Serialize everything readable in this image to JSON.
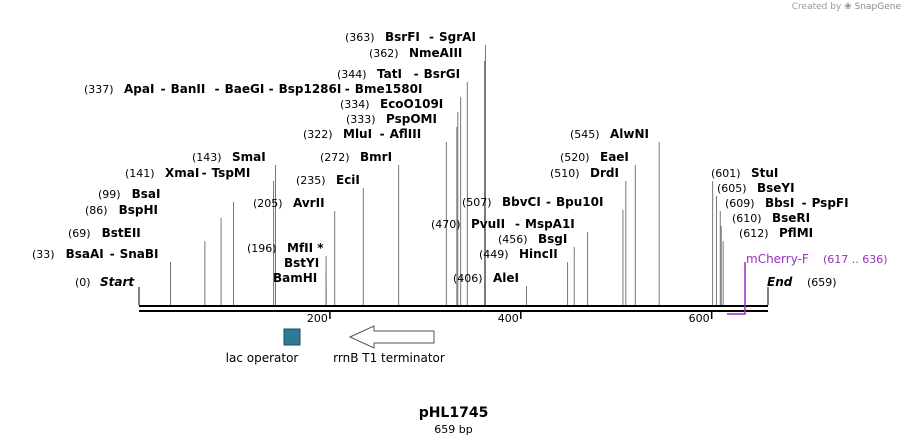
{
  "credit": {
    "prefix": "Created by",
    "brand": "SnapGene"
  },
  "map": {
    "name": "pHL1745",
    "length_label": "659 bp",
    "length": 659,
    "start_label": "Start",
    "end_label": "End",
    "start_pos": "(0)",
    "end_pos": "(659)",
    "ticks": [
      200,
      400,
      600
    ]
  },
  "sites": [
    {
      "pos": 33,
      "pos_label": "(33)",
      "names": [
        "BsaAI",
        "SnaBI"
      ]
    },
    {
      "pos": 69,
      "pos_label": "(69)",
      "names": [
        "BstEII"
      ]
    },
    {
      "pos": 86,
      "pos_label": "(86)",
      "names": [
        "BspHI"
      ]
    },
    {
      "pos": 99,
      "pos_label": "(99)",
      "names": [
        "BsaI"
      ]
    },
    {
      "pos": 141,
      "pos_label": "(141)",
      "names": [
        "XmaI",
        "TspMI"
      ]
    },
    {
      "pos": 143,
      "pos_label": "(143)",
      "names": [
        "SmaI"
      ]
    },
    {
      "pos": 196,
      "pos_label": "(196)",
      "names": [
        "MfII *"
      ]
    },
    {
      "pos": 196,
      "pos_label": "",
      "names": [
        "BstYI"
      ]
    },
    {
      "pos": 196,
      "pos_label": "",
      "names": [
        "BamHI"
      ]
    },
    {
      "pos": 205,
      "pos_label": "(205)",
      "names": [
        "AvrII"
      ]
    },
    {
      "pos": 235,
      "pos_label": "(235)",
      "names": [
        "EciI"
      ]
    },
    {
      "pos": 272,
      "pos_label": "(272)",
      "names": [
        "BmrI"
      ]
    },
    {
      "pos": 322,
      "pos_label": "(322)",
      "names": [
        "MluI",
        "AflIII"
      ]
    },
    {
      "pos": 333,
      "pos_label": "(333)",
      "names": [
        "PspOMI"
      ]
    },
    {
      "pos": 334,
      "pos_label": "(334)",
      "names": [
        "EcoO109I"
      ]
    },
    {
      "pos": 337,
      "pos_label": "(337)",
      "names": [
        "ApaI",
        "BanII",
        "BaeGI",
        "Bsp1286I",
        "Bme1580I"
      ]
    },
    {
      "pos": 344,
      "pos_label": "(344)",
      "names": [
        "TatI",
        "BsrGI"
      ]
    },
    {
      "pos": 362,
      "pos_label": "(362)",
      "names": [
        "NmeAIII"
      ]
    },
    {
      "pos": 363,
      "pos_label": "(363)",
      "names": [
        "BsrFI",
        "SgrAI"
      ]
    },
    {
      "pos": 406,
      "pos_label": "(406)",
      "names": [
        "AleI"
      ]
    },
    {
      "pos": 449,
      "pos_label": "(449)",
      "names": [
        "HincII"
      ]
    },
    {
      "pos": 456,
      "pos_label": "(456)",
      "names": [
        "BsgI"
      ]
    },
    {
      "pos": 470,
      "pos_label": "(470)",
      "names": [
        "PvuII",
        "MspA1I"
      ]
    },
    {
      "pos": 507,
      "pos_label": "(507)",
      "names": [
        "BbvCI",
        "Bpu10I"
      ]
    },
    {
      "pos": 510,
      "pos_label": "(510)",
      "names": [
        "DrdI"
      ]
    },
    {
      "pos": 520,
      "pos_label": "(520)",
      "names": [
        "EaeI"
      ]
    },
    {
      "pos": 545,
      "pos_label": "(545)",
      "names": [
        "AlwNI"
      ]
    },
    {
      "pos": 601,
      "pos_label": "(601)",
      "names": [
        "StuI"
      ]
    },
    {
      "pos": 605,
      "pos_label": "(605)",
      "names": [
        "BseYI"
      ]
    },
    {
      "pos": 609,
      "pos_label": "(609)",
      "names": [
        "BbsI",
        "PspFI"
      ]
    },
    {
      "pos": 610,
      "pos_label": "(610)",
      "names": [
        "BseRI"
      ]
    },
    {
      "pos": 612,
      "pos_label": "(612)",
      "names": [
        "PflMI"
      ]
    }
  ],
  "features": [
    {
      "name": "lac operator",
      "color": "#2e7a95",
      "kind": "box"
    },
    {
      "name": "rrnB T1 terminator",
      "color": "#ffffff",
      "kind": "arrow-left"
    }
  ],
  "primer": {
    "name": "mCherry-F",
    "range": "(617 .. 636)",
    "color": "#9b2fc1"
  }
}
